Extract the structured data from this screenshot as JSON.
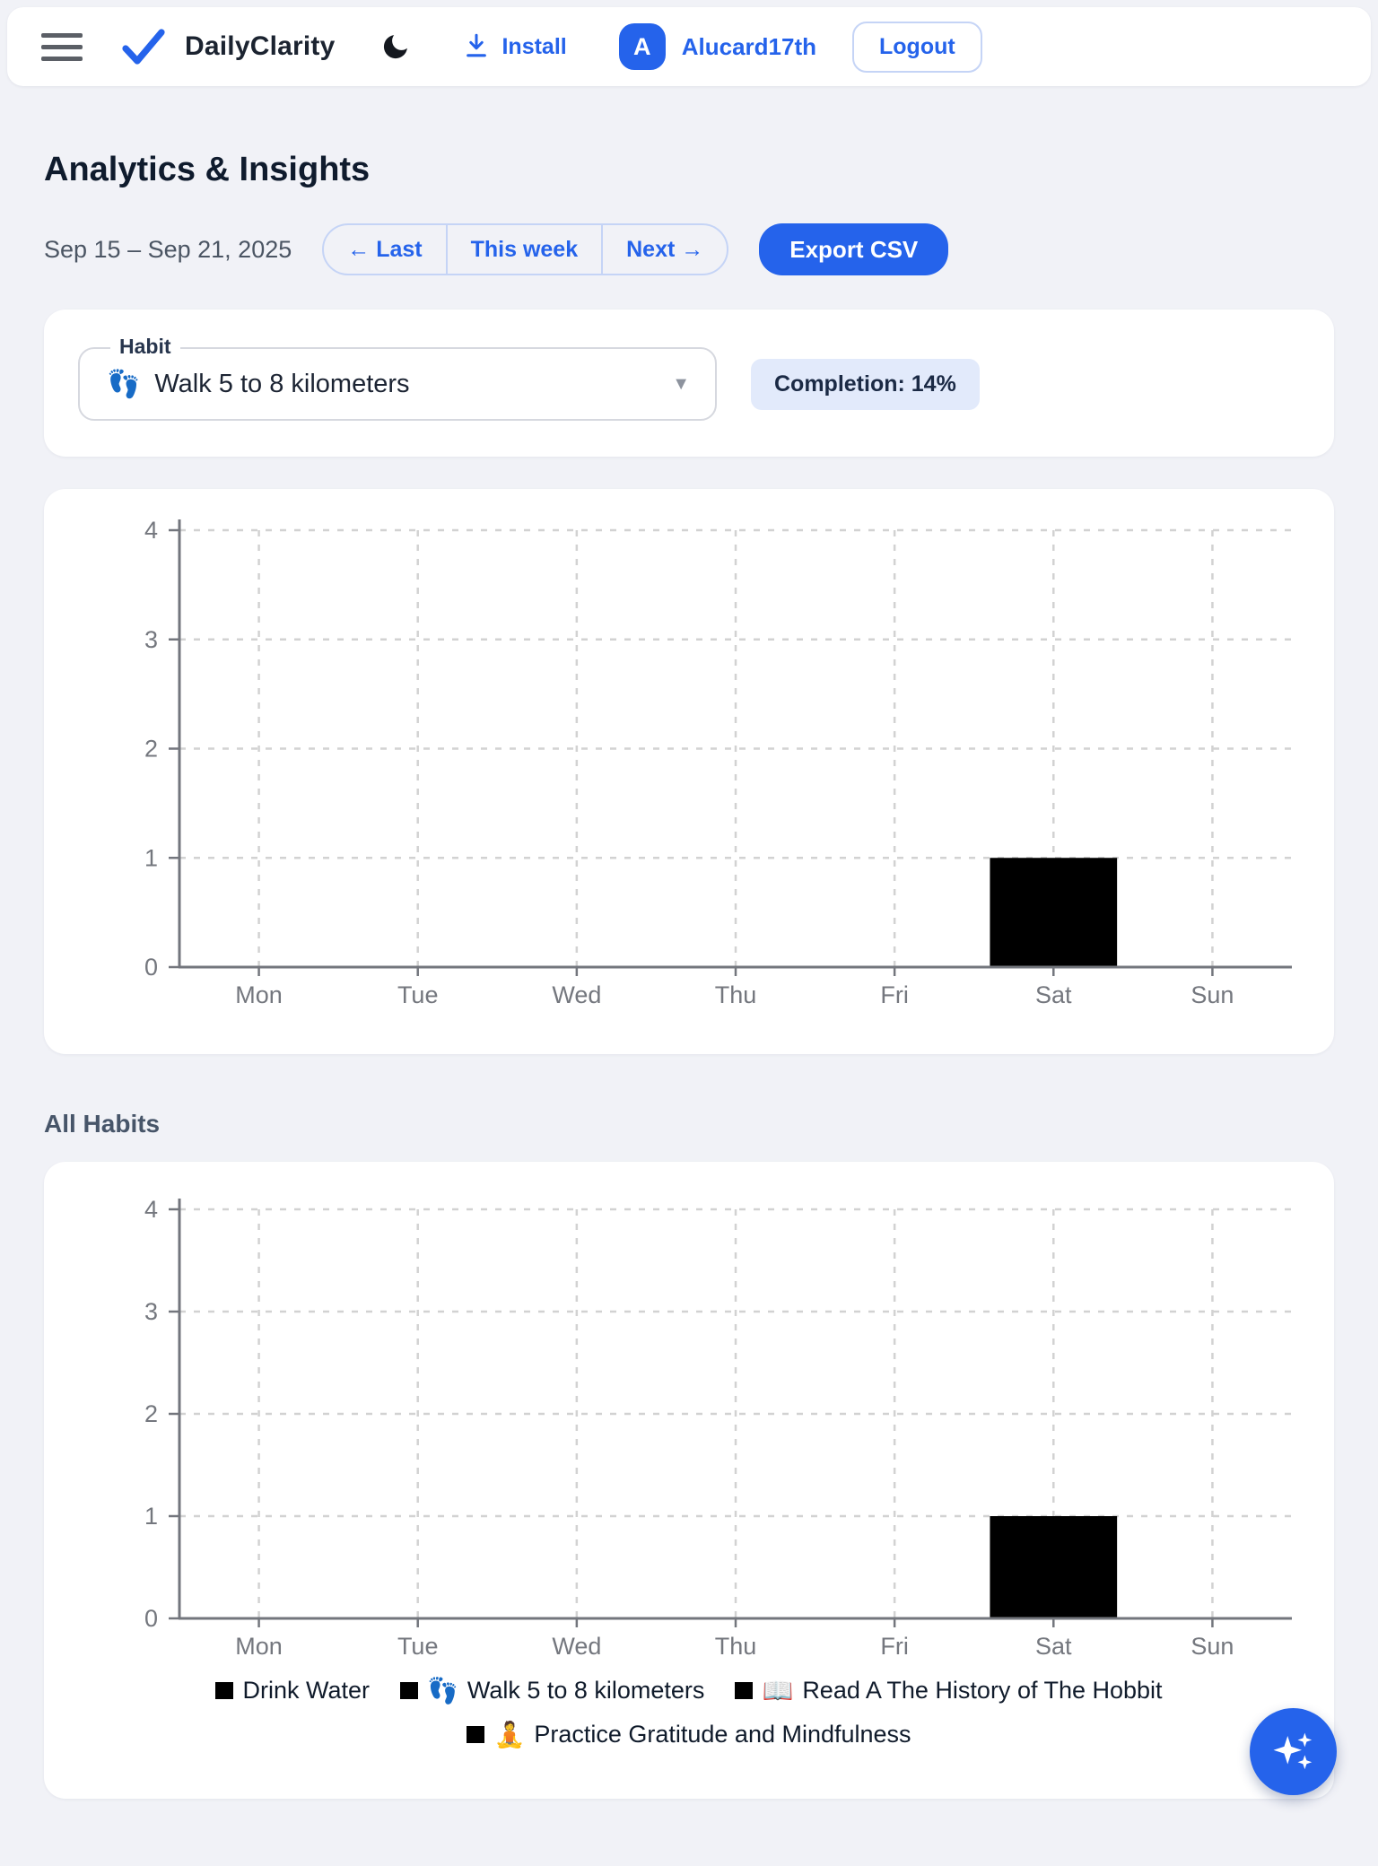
{
  "header": {
    "brand": "DailyClarity",
    "install_label": "Install",
    "avatar_letter": "A",
    "username": "Alucard17th",
    "logout_label": "Logout"
  },
  "page": {
    "title": "Analytics & Insights",
    "date_range": "Sep 15 – Sep 21, 2025",
    "nav": {
      "last": "← Last",
      "this_week": "This week",
      "next": "Next →"
    },
    "export_label": "Export CSV",
    "all_habits_heading": "All Habits"
  },
  "habit_selector": {
    "label": "Habit",
    "selected_emoji": "👣",
    "selected": "Walk 5 to 8 kilometers",
    "caret": "▼",
    "completion": "Completion: 14%"
  },
  "colors": {
    "accent_blue": "#2563eb",
    "bar_black": "#000000",
    "badge_bg": "#e2eafb",
    "page_bg": "#f1f2f7",
    "card_bg": "#ffffff"
  },
  "chart_data": [
    {
      "type": "bar",
      "title": "",
      "categories": [
        "Mon",
        "Tue",
        "Wed",
        "Thu",
        "Fri",
        "Sat",
        "Sun"
      ],
      "series": [
        {
          "name": "Walk 5 to 8 kilometers",
          "emoji": "👣",
          "values": [
            0,
            0,
            0,
            0,
            0,
            1,
            0
          ]
        }
      ],
      "xlabel": "",
      "ylabel": "",
      "ylim": [
        0,
        4
      ],
      "yticks": [
        0,
        1,
        2,
        3,
        4
      ],
      "grid": true,
      "legend_position": "none",
      "bar_color": "#000000",
      "grid_color": "#d2d2d2",
      "axis_color": "#73767d",
      "tick_color": "#74777e"
    },
    {
      "type": "bar",
      "title": "",
      "categories": [
        "Mon",
        "Tue",
        "Wed",
        "Thu",
        "Fri",
        "Sat",
        "Sun"
      ],
      "series": [
        {
          "name": "Drink Water",
          "emoji": "",
          "values": [
            0,
            0,
            0,
            0,
            0,
            0,
            0
          ]
        },
        {
          "name": "Walk 5 to 8 kilometers",
          "emoji": "👣",
          "values": [
            0,
            0,
            0,
            0,
            0,
            1,
            0
          ]
        },
        {
          "name": "Read A The History of The Hobbit",
          "emoji": "📖",
          "values": [
            0,
            0,
            0,
            0,
            0,
            0,
            0
          ]
        },
        {
          "name": "Practice Gratitude and Mindfulness",
          "emoji": "🧘",
          "values": [
            0,
            0,
            0,
            0,
            0,
            0,
            0
          ]
        }
      ],
      "xlabel": "",
      "ylabel": "",
      "ylim": [
        0,
        4
      ],
      "yticks": [
        0,
        1,
        2,
        3,
        4
      ],
      "grid": true,
      "stacked": true,
      "legend_position": "bottom",
      "bar_color": "#000000",
      "grid_color": "#d2d2d2",
      "axis_color": "#73767d",
      "tick_color": "#74777e"
    }
  ]
}
